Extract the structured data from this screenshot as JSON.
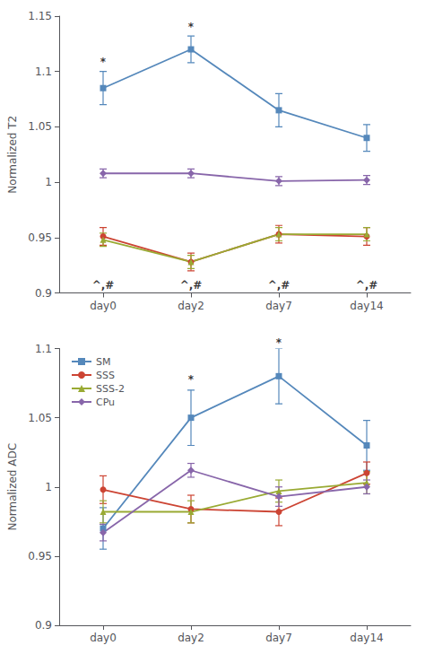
{
  "chart_data": [
    {
      "type": "line",
      "y_label": "Normalized T2",
      "categories": [
        "day0",
        "day2",
        "day7",
        "day14"
      ],
      "series": [
        {
          "name": "SM",
          "color": "#5588BB",
          "marker": "square",
          "values": [
            1.085,
            1.12,
            1.065,
            1.04
          ],
          "errors": [
            0.015,
            0.012,
            0.015,
            0.012
          ]
        },
        {
          "name": "SSS",
          "color": "#CC4433",
          "marker": "circle",
          "values": [
            0.951,
            0.928,
            0.953,
            0.951
          ],
          "errors": [
            0.008,
            0.008,
            0.008,
            0.008
          ]
        },
        {
          "name": "SSS-2",
          "color": "#99AA33",
          "marker": "triangle",
          "values": [
            0.948,
            0.928,
            0.953,
            0.953
          ],
          "errors": [
            0.006,
            0.006,
            0.006,
            0.006
          ]
        },
        {
          "name": "CPu",
          "color": "#8866AA",
          "marker": "diamond",
          "values": [
            1.008,
            1.008,
            1.001,
            1.002
          ],
          "errors": [
            0.004,
            0.004,
            0.004,
            0.004
          ]
        }
      ],
      "ylim": [
        0.9,
        1.15
      ],
      "yticks": [
        0.9,
        0.95,
        1,
        1.05,
        1.1,
        1.15
      ],
      "grid": false,
      "annotations": [
        {
          "text": "*",
          "x": "day0",
          "y": 1.103
        },
        {
          "text": "*",
          "x": "day2",
          "y": 1.135
        },
        {
          "text": "^,#",
          "x": "day0",
          "y": 0.901
        },
        {
          "text": "^,#",
          "x": "day2",
          "y": 0.901
        },
        {
          "text": "^,#",
          "x": "day7",
          "y": 0.901
        },
        {
          "text": "^,#",
          "x": "day14",
          "y": 0.901
        }
      ]
    },
    {
      "type": "line",
      "y_label": "Normalized ADC",
      "categories": [
        "day0",
        "day2",
        "day7",
        "day14"
      ],
      "series": [
        {
          "name": "SM",
          "color": "#5588BB",
          "marker": "square",
          "values": [
            0.97,
            1.05,
            1.08,
            1.03
          ],
          "errors": [
            0.015,
            0.02,
            0.02,
            0.018
          ]
        },
        {
          "name": "SSS",
          "color": "#CC4433",
          "marker": "circle",
          "values": [
            0.998,
            0.984,
            0.982,
            1.01
          ],
          "errors": [
            0.01,
            0.01,
            0.01,
            0.008
          ]
        },
        {
          "name": "SSS-2",
          "color": "#99AA33",
          "marker": "triangle",
          "values": [
            0.982,
            0.982,
            0.997,
            1.003
          ],
          "errors": [
            0.008,
            0.008,
            0.008,
            0.008
          ]
        },
        {
          "name": "CPu",
          "color": "#8866AA",
          "marker": "diamond",
          "values": [
            0.967,
            1.012,
            0.993,
            1.0
          ],
          "errors": [
            0.006,
            0.005,
            0.007,
            0.005
          ]
        }
      ],
      "ylim": [
        0.9,
        1.1
      ],
      "yticks": [
        0.9,
        0.95,
        1,
        1.05,
        1.1
      ],
      "grid": false,
      "legend": "upper left",
      "annotations": [
        {
          "text": "*",
          "x": "day2",
          "y": 1.073
        },
        {
          "text": "*",
          "x": "day7",
          "y": 1.1
        }
      ]
    }
  ]
}
